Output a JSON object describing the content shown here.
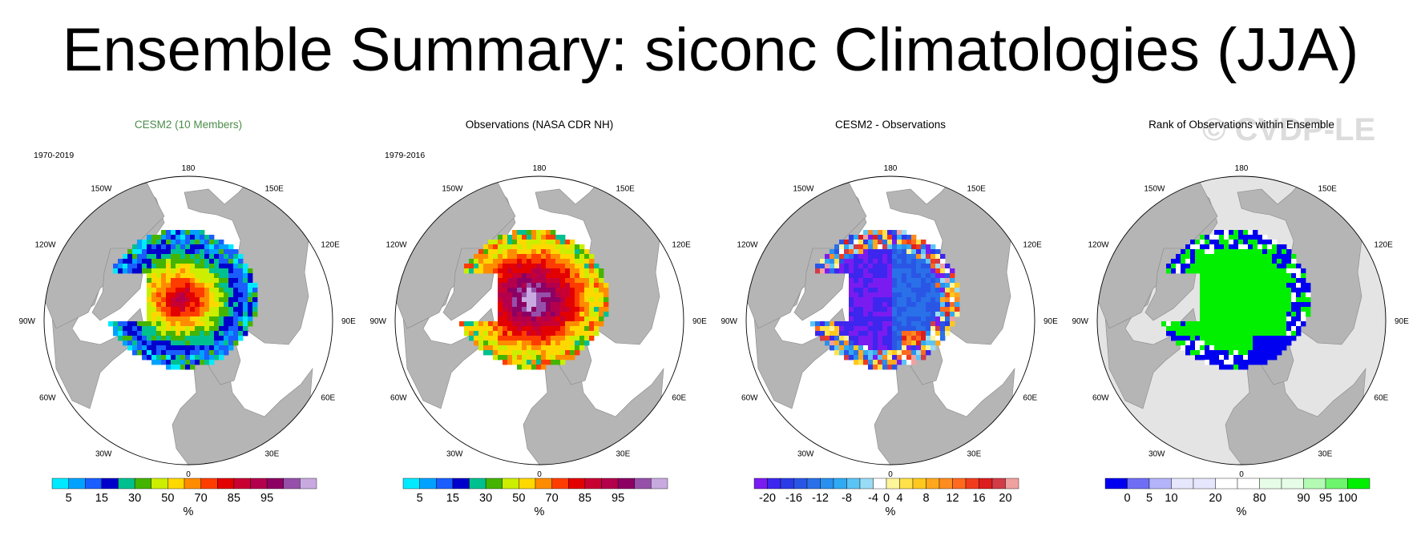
{
  "title": "Ensemble Summary: siconc Climatologies (JJA)",
  "watermark": "© CVDP-LE",
  "colors": {
    "land": "#b5b5b5",
    "ocean": "#ffffff",
    "title_green": "#4c8c4a"
  },
  "chart_data": [
    {
      "type": "heatmap",
      "title": "CESM2 (10 Members)",
      "period": "1970-2019",
      "projection": "north polar stereographic",
      "longitude_labels": [
        "180",
        "150E",
        "120E",
        "90E",
        "60E",
        "30E",
        "0",
        "30W",
        "60W",
        "90W",
        "120W",
        "150W"
      ],
      "colorbar": {
        "colors": [
          "#00eaff",
          "#00a2ff",
          "#1a5eff",
          "#0000cc",
          "#00c090",
          "#44b400",
          "#ccee00",
          "#ffd800",
          "#ff8c00",
          "#ff3c00",
          "#e30000",
          "#c80032",
          "#b4004c",
          "#8c0064",
          "#9650aa",
          "#c8aae0"
        ],
        "labels": [
          "5",
          "15",
          "30",
          "50",
          "70",
          "85",
          "95"
        ],
        "units": "%"
      }
    },
    {
      "type": "heatmap",
      "title": "Observations (NASA CDR NH)",
      "period": "1979-2016",
      "projection": "north polar stereographic",
      "longitude_labels": [
        "180",
        "150E",
        "120E",
        "90E",
        "60E",
        "30E",
        "0",
        "30W",
        "60W",
        "90W",
        "120W",
        "150W"
      ],
      "colorbar": {
        "colors": [
          "#00eaff",
          "#00a2ff",
          "#1a5eff",
          "#0000cc",
          "#00c090",
          "#44b400",
          "#ccee00",
          "#ffd800",
          "#ff8c00",
          "#ff3c00",
          "#e30000",
          "#c80032",
          "#b4004c",
          "#8c0064",
          "#9650aa",
          "#c8aae0"
        ],
        "labels": [
          "5",
          "15",
          "30",
          "50",
          "70",
          "85",
          "95"
        ],
        "units": "%"
      }
    },
    {
      "type": "heatmap",
      "title": "CESM2 - Observations",
      "period": "",
      "projection": "north polar stereographic",
      "longitude_labels": [
        "180",
        "150E",
        "120E",
        "90E",
        "60E",
        "30E",
        "0",
        "30W",
        "60W",
        "90W",
        "120W",
        "150W"
      ],
      "colorbar": {
        "colors": [
          "#7a1cf0",
          "#3d26ee",
          "#2a3ce8",
          "#2a56e6",
          "#2a70e8",
          "#2a90ee",
          "#30aaf2",
          "#5cc4f4",
          "#98dcf6",
          "#ffffff",
          "#fff59a",
          "#ffe24a",
          "#ffc81e",
          "#ffa81e",
          "#ff8c1e",
          "#ff6a1e",
          "#f03c1e",
          "#dc1e1e",
          "#d23c46",
          "#f0a0a0"
        ],
        "labels": [
          "-20",
          "-16",
          "-12",
          "-8",
          "-4",
          "0",
          "4",
          "8",
          "12",
          "16",
          "20"
        ],
        "units": "%"
      }
    },
    {
      "type": "heatmap",
      "title": "Rank of Observations within Ensemble",
      "period": "",
      "projection": "north polar stereographic",
      "longitude_labels": [
        "180",
        "150E",
        "120E",
        "90E",
        "60E",
        "30E",
        "0",
        "30W",
        "60W",
        "90W",
        "120W",
        "150W"
      ],
      "colorbar": {
        "colors": [
          "#0000f0",
          "#6e6ef5",
          "#b4b4fa",
          "#e6e6fc",
          "#e6e6fc",
          "#ffffff",
          "#ffffff",
          "#e6fce6",
          "#e6fce6",
          "#b4fab4",
          "#6ef56e",
          "#00f000"
        ],
        "labels": [
          "0",
          "5",
          "10",
          "20",
          "80",
          "90",
          "95",
          "100"
        ],
        "units": "%"
      }
    }
  ]
}
